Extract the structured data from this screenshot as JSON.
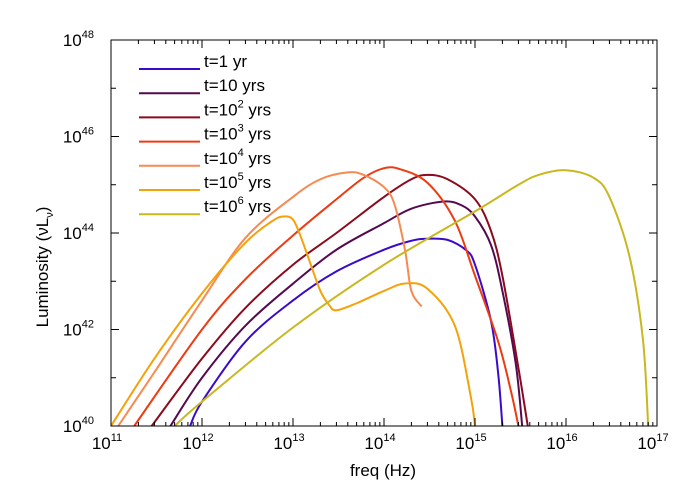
{
  "chart_data": {
    "type": "line",
    "title": "",
    "xlabel": "freq (Hz)",
    "ylabel": "Luminosity (νLν)",
    "ylabel_main": "Luminosity (νL",
    "ylabel_sub": "ν",
    "ylabel_close": ")",
    "x_scale": "log",
    "y_scale": "log",
    "xlim": [
      100000000000.0,
      1e+17
    ],
    "ylim": [
      1e+40,
      1e+48
    ],
    "grid": false,
    "legend_position": "top-left",
    "x_ticks": [
      {
        "base": "10",
        "exp": "11"
      },
      {
        "base": "10",
        "exp": "12"
      },
      {
        "base": "10",
        "exp": "13"
      },
      {
        "base": "10",
        "exp": "14"
      },
      {
        "base": "10",
        "exp": "15"
      },
      {
        "base": "10",
        "exp": "16"
      },
      {
        "base": "10",
        "exp": "17"
      }
    ],
    "y_ticks": [
      {
        "base": "10",
        "exp": "40"
      },
      {
        "base": "10",
        "exp": "42"
      },
      {
        "base": "10",
        "exp": "44"
      },
      {
        "base": "10",
        "exp": "46"
      },
      {
        "base": "10",
        "exp": "48"
      }
    ],
    "series": [
      {
        "name": "t=1 yr",
        "name_prefix": "t=1 yr",
        "name_exp": "",
        "name_suffix": "",
        "color": "#3a0acb",
        "x": [
          740000000000.0,
          1000000000000.0,
          3000000000000.0,
          10000000000000.0,
          30000000000000.0,
          100000000000000.0,
          200000000000000.0,
          300000000000000.0,
          500000000000000.0,
          800000000000000.0,
          1000000000000000.0,
          1500000000000000.0,
          1800000000000000.0,
          2000000000000000.0
        ],
        "y": [
          1e+40,
          3.2e+40,
          5.6e+41,
          4e+42,
          1.6e+43,
          4.5e+43,
          6.9e+43,
          7.6e+43,
          7.2e+43,
          4.4e+43,
          2.2e+43,
          1.5e+42,
          1.2e+41,
          1e+40
        ]
      },
      {
        "name": "t=10 yrs",
        "name_prefix": "t=10 yrs",
        "name_exp": "",
        "name_suffix": "",
        "color": "#550a50",
        "x": [
          450000000000.0,
          1000000000000.0,
          3000000000000.0,
          10000000000000.0,
          30000000000000.0,
          100000000000000.0,
          200000000000000.0,
          450000000000000.0,
          700000000000000.0,
          1000000000000000.0,
          1500000000000000.0,
          2000000000000000.0,
          2800000000000000.0,
          3300000000000000.0
        ],
        "y": [
          1e+40,
          1e+41,
          1.2e+42,
          8.9e+42,
          4.5e+43,
          1.6e+44,
          3.2e+44,
          4.5e+44,
          3.8e+44,
          2.2e+44,
          5.6e+43,
          6.3e+42,
          2e+41,
          1e+40
        ]
      },
      {
        "name": "t=10^2 yrs",
        "name_prefix": "t=10",
        "name_exp": "2",
        "name_suffix": " yrs",
        "color": "#8b0a1e",
        "x": [
          280000000000.0,
          1000000000000.0,
          3000000000000.0,
          10000000000000.0,
          30000000000000.0,
          100000000000000.0,
          200000000000000.0,
          300000000000000.0,
          500000000000000.0,
          1000000000000000.0,
          1500000000000000.0,
          2000000000000000.0,
          3000000000000000.0,
          3800000000000000.0
        ],
        "y": [
          1e+40,
          2.5e+41,
          2.8e+42,
          2.2e+43,
          1e+44,
          5.6e+44,
          1.3e+45,
          1.6e+45,
          1.3e+45,
          5e+44,
          1.1e+44,
          1.3e+43,
          1.6e+41,
          1e+40
        ]
      },
      {
        "name": "t=10^3 yrs",
        "name_prefix": "t=10",
        "name_exp": "3",
        "name_suffix": " yrs",
        "color": "#ed3b12",
        "x": [
          180000000000.0,
          1000000000000.0,
          3000000000000.0,
          10000000000000.0,
          30000000000000.0,
          60000000000000.0,
          100000000000000.0,
          150000000000000.0,
          300000000000000.0,
          600000000000000.0,
          1000000000000000.0,
          1800000000000000.0,
          2500000000000000.0,
          3000000000000000.0
        ],
        "y": [
          1e+40,
          1e+42,
          1.1e+43,
          8.9e+43,
          5e+44,
          1.4e+45,
          2.2e+45,
          2.1e+45,
          1.1e+45,
          1.8e+44,
          1.3e+43,
          5.6e+41,
          5e+40,
          1e+40
        ]
      },
      {
        "name": "t=10^4 yrs",
        "name_prefix": "t=10",
        "name_exp": "4",
        "name_suffix": " yrs",
        "color": "#f58a52",
        "x": [
          120000000000.0,
          300000000000.0,
          1000000000000.0,
          3000000000000.0,
          10000000000000.0,
          20000000000000.0,
          40000000000000.0,
          60000000000000.0,
          100000000000000.0,
          130000000000000.0,
          170000000000000.0,
          200000000000000.0,
          260000000000000.0
        ],
        "y": [
          1e+40,
          1.3e+41,
          4e+42,
          7.9e+43,
          5.6e+44,
          1.3e+45,
          1.8e+45,
          1.6e+45,
          8.9e+44,
          4e+44,
          4.5e+43,
          6.3e+42,
          3e+42
        ]
      },
      {
        "name": "t=10^5 yrs",
        "name_prefix": "t=10",
        "name_exp": "5",
        "name_suffix": " yrs",
        "color": "#f5a20a",
        "x": [
          100000000000.0,
          300000000000.0,
          1000000000000.0,
          3000000000000.0,
          6000000000000.0,
          8000000000000.0,
          10000000000000.0,
          12000000000000.0,
          15000000000000.0,
          20000000000000.0,
          25000000000000.0,
          30000000000000.0,
          50000000000000.0,
          100000000000000.0,
          170000000000000.0,
          300000000000000.0,
          600000000000000.0,
          900000000000000.0,
          1000000000000000.0
        ],
        "y": [
          1e+40,
          2.5e+41,
          5.6e+42,
          6.3e+43,
          1.8e+44,
          2.2e+44,
          1.9e+44,
          9e+43,
          2.8e+43,
          6.3e+42,
          3.2e+42,
          2.5e+42,
          3.5e+42,
          6.3e+42,
          9e+42,
          7e+42,
          1.2e+42,
          4e+40,
          1e+40
        ]
      },
      {
        "name": "t=10^6 yrs",
        "name_prefix": "t=10",
        "name_exp": "6",
        "name_suffix": " yrs",
        "color": "#c8b820",
        "x": [
          500000000000.0,
          1000000000000.0,
          10000000000000.0,
          100000000000000.0,
          1000000000000000.0,
          3000000000000000.0,
          5000000000000000.0,
          1e+16,
          2e+16,
          3e+16,
          5e+16,
          7e+16,
          8e+16
        ],
        "y": [
          1e+40,
          3.2e+40,
          1.1e+42,
          2.2e+43,
          2.8e+44,
          1e+45,
          1.6e+45,
          2e+45,
          1.4e+45,
          5.6e+44,
          3.2e+43,
          6.3e+41,
          1e+40
        ]
      }
    ]
  }
}
